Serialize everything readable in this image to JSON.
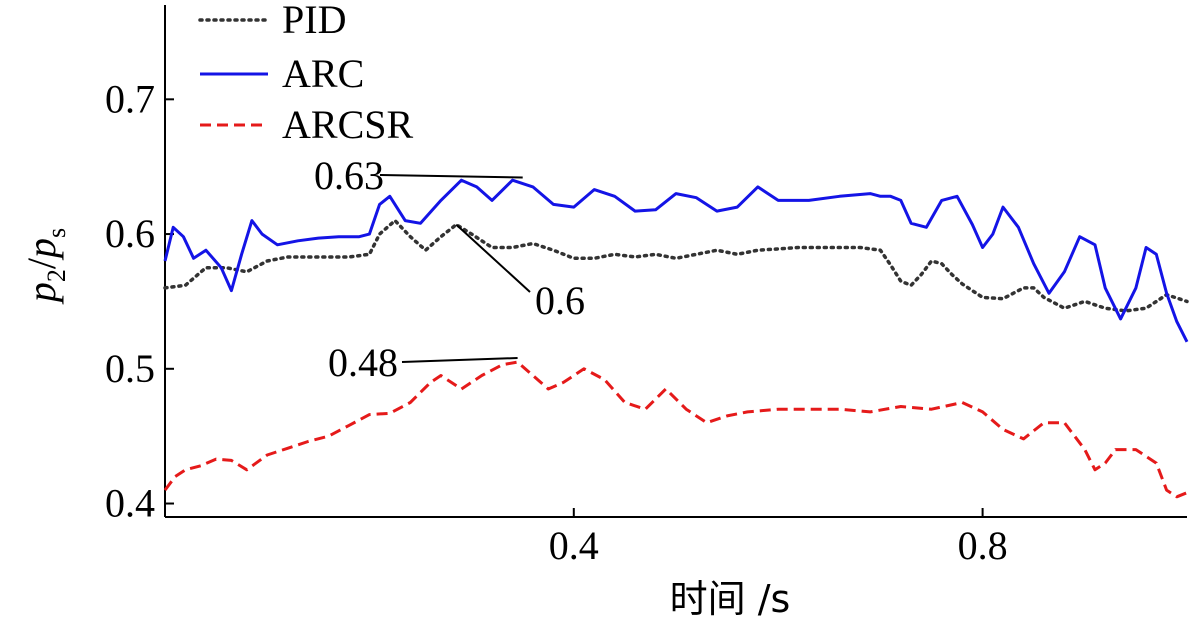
{
  "chart_data": {
    "type": "line",
    "xlabel": "时间 /s",
    "ylabel_main": "p",
    "ylabel_sub1": "2",
    "ylabel_slash": "/",
    "ylabel_sub2": "s",
    "xlim": [
      0.0,
      1.0
    ],
    "ylim": [
      0.39,
      0.77
    ],
    "xticks": [
      0.4,
      0.8
    ],
    "xtick_labels": [
      "0.4",
      "0.8"
    ],
    "yticks": [
      0.4,
      0.5,
      0.6,
      0.7
    ],
    "ytick_labels": [
      "0.4",
      "0.5",
      "0.6",
      "0.7"
    ],
    "legend_position": "top-left",
    "series": [
      {
        "name": "PID",
        "color": "#333333",
        "style": "dotted",
        "x": [
          0.0,
          0.02,
          0.04,
          0.06,
          0.08,
          0.1,
          0.12,
          0.15,
          0.18,
          0.2,
          0.21,
          0.225,
          0.24,
          0.255,
          0.27,
          0.285,
          0.3,
          0.32,
          0.34,
          0.36,
          0.38,
          0.4,
          0.42,
          0.44,
          0.46,
          0.48,
          0.5,
          0.52,
          0.54,
          0.56,
          0.58,
          0.6,
          0.62,
          0.65,
          0.68,
          0.7,
          0.71,
          0.72,
          0.73,
          0.74,
          0.75,
          0.76,
          0.77,
          0.78,
          0.8,
          0.82,
          0.84,
          0.85,
          0.86,
          0.88,
          0.9,
          0.92,
          0.94,
          0.96,
          0.98,
          1.0
        ],
        "y": [
          0.56,
          0.562,
          0.575,
          0.575,
          0.572,
          0.58,
          0.583,
          0.583,
          0.583,
          0.585,
          0.6,
          0.61,
          0.598,
          0.588,
          0.598,
          0.607,
          0.6,
          0.59,
          0.59,
          0.593,
          0.588,
          0.582,
          0.582,
          0.585,
          0.583,
          0.585,
          0.582,
          0.585,
          0.588,
          0.585,
          0.588,
          0.589,
          0.59,
          0.59,
          0.59,
          0.588,
          0.577,
          0.565,
          0.562,
          0.57,
          0.58,
          0.578,
          0.57,
          0.563,
          0.553,
          0.552,
          0.56,
          0.56,
          0.553,
          0.545,
          0.55,
          0.545,
          0.543,
          0.545,
          0.555,
          0.55
        ]
      },
      {
        "name": "ARC",
        "color": "#1414e6",
        "style": "solid",
        "x": [
          0.0,
          0.008,
          0.018,
          0.028,
          0.04,
          0.055,
          0.065,
          0.075,
          0.085,
          0.095,
          0.11,
          0.13,
          0.15,
          0.17,
          0.19,
          0.2,
          0.21,
          0.22,
          0.235,
          0.25,
          0.27,
          0.29,
          0.305,
          0.32,
          0.34,
          0.36,
          0.38,
          0.4,
          0.42,
          0.44,
          0.46,
          0.48,
          0.5,
          0.52,
          0.54,
          0.56,
          0.58,
          0.6,
          0.63,
          0.66,
          0.69,
          0.7,
          0.71,
          0.72,
          0.73,
          0.745,
          0.76,
          0.775,
          0.79,
          0.8,
          0.81,
          0.82,
          0.835,
          0.85,
          0.865,
          0.88,
          0.895,
          0.91,
          0.92,
          0.935,
          0.95,
          0.96,
          0.97,
          0.98,
          0.99,
          1.0
        ],
        "y": [
          0.58,
          0.605,
          0.598,
          0.582,
          0.588,
          0.575,
          0.558,
          0.585,
          0.61,
          0.6,
          0.592,
          0.595,
          0.597,
          0.598,
          0.598,
          0.6,
          0.622,
          0.628,
          0.61,
          0.608,
          0.625,
          0.64,
          0.635,
          0.625,
          0.64,
          0.635,
          0.622,
          0.62,
          0.633,
          0.628,
          0.617,
          0.618,
          0.63,
          0.627,
          0.617,
          0.62,
          0.635,
          0.625,
          0.625,
          0.628,
          0.63,
          0.628,
          0.628,
          0.625,
          0.608,
          0.605,
          0.625,
          0.628,
          0.607,
          0.59,
          0.6,
          0.62,
          0.605,
          0.578,
          0.556,
          0.572,
          0.598,
          0.592,
          0.56,
          0.537,
          0.56,
          0.59,
          0.585,
          0.556,
          0.535,
          0.52
        ]
      },
      {
        "name": "ARCSR",
        "color": "#e51a1a",
        "style": "dashed",
        "x": [
          0.0,
          0.01,
          0.02,
          0.035,
          0.05,
          0.065,
          0.08,
          0.1,
          0.12,
          0.14,
          0.16,
          0.18,
          0.2,
          0.22,
          0.24,
          0.26,
          0.27,
          0.29,
          0.31,
          0.33,
          0.345,
          0.36,
          0.375,
          0.39,
          0.41,
          0.43,
          0.45,
          0.47,
          0.49,
          0.51,
          0.53,
          0.55,
          0.57,
          0.6,
          0.63,
          0.66,
          0.69,
          0.72,
          0.75,
          0.78,
          0.8,
          0.82,
          0.84,
          0.86,
          0.88,
          0.9,
          0.91,
          0.92,
          0.93,
          0.95,
          0.97,
          0.98,
          0.99,
          1.0
        ],
        "y": [
          0.41,
          0.42,
          0.425,
          0.428,
          0.433,
          0.432,
          0.425,
          0.436,
          0.441,
          0.446,
          0.45,
          0.458,
          0.466,
          0.467,
          0.475,
          0.49,
          0.495,
          0.485,
          0.495,
          0.503,
          0.505,
          0.495,
          0.485,
          0.49,
          0.5,
          0.492,
          0.475,
          0.47,
          0.485,
          0.47,
          0.46,
          0.465,
          0.468,
          0.47,
          0.47,
          0.47,
          0.468,
          0.472,
          0.47,
          0.475,
          0.468,
          0.455,
          0.448,
          0.46,
          0.46,
          0.44,
          0.425,
          0.43,
          0.44,
          0.44,
          0.43,
          0.41,
          0.405,
          0.408
        ]
      }
    ],
    "annotations": [
      {
        "label": "0.63",
        "point_x": 0.35,
        "point_y": 0.642
      },
      {
        "label": "0.6",
        "point_x": 0.285,
        "point_y": 0.607
      },
      {
        "label": "0.48",
        "point_x": 0.345,
        "point_y": 0.508
      }
    ]
  }
}
